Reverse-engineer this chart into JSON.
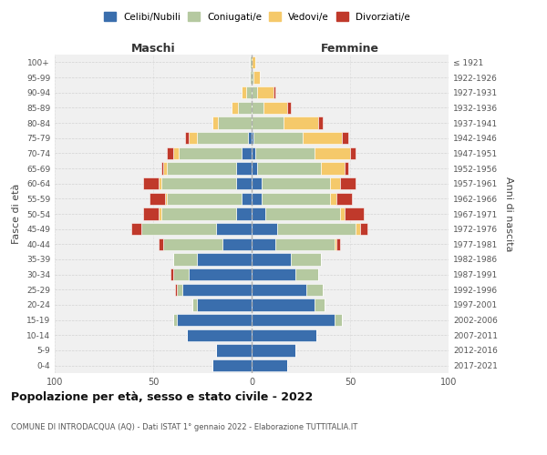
{
  "age_groups": [
    "0-4",
    "5-9",
    "10-14",
    "15-19",
    "20-24",
    "25-29",
    "30-34",
    "35-39",
    "40-44",
    "45-49",
    "50-54",
    "55-59",
    "60-64",
    "65-69",
    "70-74",
    "75-79",
    "80-84",
    "85-89",
    "90-94",
    "95-99",
    "100+"
  ],
  "birth_years": [
    "2017-2021",
    "2012-2016",
    "2007-2011",
    "2002-2006",
    "1997-2001",
    "1992-1996",
    "1987-1991",
    "1982-1986",
    "1977-1981",
    "1972-1976",
    "1967-1971",
    "1962-1966",
    "1957-1961",
    "1952-1956",
    "1947-1951",
    "1942-1946",
    "1937-1941",
    "1932-1936",
    "1927-1931",
    "1922-1926",
    "≤ 1921"
  ],
  "maschi": {
    "celibi": [
      20,
      18,
      33,
      38,
      28,
      35,
      32,
      28,
      15,
      18,
      8,
      5,
      8,
      8,
      5,
      2,
      0,
      0,
      0,
      0,
      0
    ],
    "coniugati": [
      0,
      0,
      0,
      2,
      2,
      3,
      8,
      12,
      30,
      38,
      38,
      38,
      38,
      35,
      32,
      26,
      17,
      7,
      3,
      1,
      1
    ],
    "vedovi": [
      0,
      0,
      0,
      0,
      0,
      0,
      0,
      0,
      0,
      0,
      1,
      1,
      1,
      2,
      3,
      4,
      3,
      3,
      2,
      0,
      0
    ],
    "divorziati": [
      0,
      0,
      0,
      0,
      0,
      1,
      1,
      0,
      2,
      5,
      8,
      8,
      8,
      1,
      3,
      2,
      0,
      0,
      0,
      0,
      0
    ]
  },
  "femmine": {
    "nubili": [
      18,
      22,
      33,
      42,
      32,
      28,
      22,
      20,
      12,
      13,
      7,
      5,
      5,
      3,
      2,
      1,
      0,
      0,
      0,
      0,
      0
    ],
    "coniugate": [
      0,
      0,
      0,
      4,
      5,
      8,
      12,
      15,
      30,
      40,
      38,
      35,
      35,
      32,
      30,
      25,
      16,
      6,
      3,
      1,
      0
    ],
    "vedove": [
      0,
      0,
      0,
      0,
      0,
      0,
      0,
      0,
      1,
      2,
      2,
      3,
      5,
      12,
      18,
      20,
      18,
      12,
      8,
      3,
      2
    ],
    "divorziate": [
      0,
      0,
      0,
      0,
      0,
      0,
      0,
      0,
      2,
      4,
      10,
      8,
      8,
      2,
      3,
      3,
      2,
      2,
      1,
      0,
      0
    ]
  },
  "colors": {
    "celibi": "#3a6ead",
    "coniugati": "#b5c9a0",
    "vedovi": "#f5c96a",
    "divorziati": "#c0392b"
  },
  "xlim": 100,
  "title": "Popolazione per età, sesso e stato civile - 2022",
  "subtitle": "COMUNE DI INTRODACQUA (AQ) - Dati ISTAT 1° gennaio 2022 - Elaborazione TUTTITALIA.IT",
  "ylabel_left": "Fasce di età",
  "ylabel_right": "Anni di nascita",
  "xlabel_left": "Maschi",
  "xlabel_right": "Femmine",
  "legend_labels": [
    "Celibi/Nubili",
    "Coniugati/e",
    "Vedovi/e",
    "Divorziati/e"
  ],
  "bg_color": "#f0f0f0"
}
